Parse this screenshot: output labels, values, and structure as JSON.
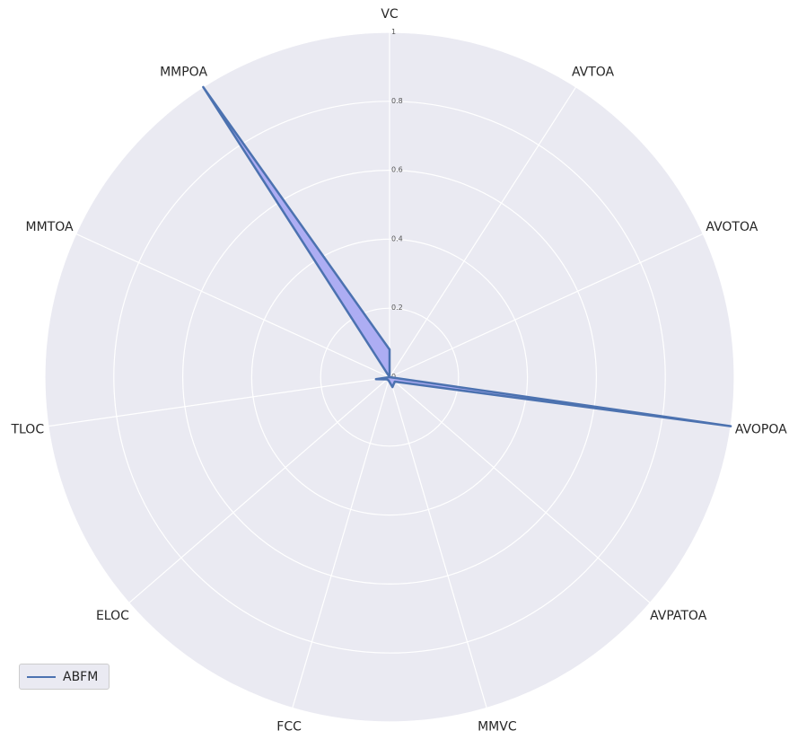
{
  "chart_data": {
    "type": "radar",
    "title": "",
    "categories": [
      "VC",
      "AVTOA",
      "AVOTOA",
      "AVOPOA",
      "AVPATOA",
      "MMVC",
      "FCC",
      "ELOC",
      "TLOC",
      "MMTOA",
      "MMPOA"
    ],
    "series": [
      {
        "name": "ABFM",
        "values": [
          0.08,
          0.0,
          0.0,
          1.0,
          0.02,
          0.03,
          0.01,
          0.01,
          0.04,
          0.0,
          1.0
        ]
      }
    ],
    "rlim": [
      0,
      1
    ],
    "r_ticks": [
      0,
      0.2,
      0.4,
      0.6,
      0.8,
      1
    ],
    "r_tick_labels": [
      "0",
      "0.2",
      "0.4",
      "0.6",
      "0.8",
      "1"
    ],
    "grid": true,
    "legend_position": "lower-left",
    "colors": {
      "background": "#eaeaf2",
      "grid": "#ffffff",
      "series_line": "#4c72b0",
      "series_fill": "#aaaaf2"
    }
  }
}
